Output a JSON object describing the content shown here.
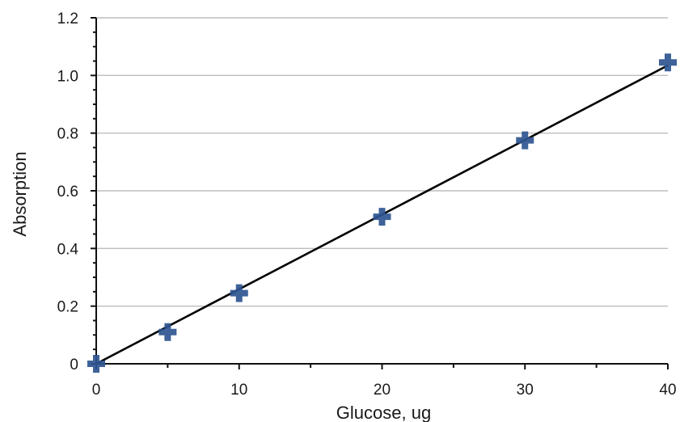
{
  "chart_data": {
    "type": "scatter",
    "xlabel": "Glucose, ug",
    "ylabel": "Absorption",
    "xlim": [
      0,
      40
    ],
    "ylim": [
      0,
      1.2
    ],
    "x_ticks": [
      0,
      10,
      20,
      30,
      40
    ],
    "y_ticks": [
      0,
      0.2,
      0.4,
      0.6,
      0.8,
      1.0,
      1.2
    ],
    "x_tick_labels": [
      "0",
      "10",
      "20",
      "30",
      "40"
    ],
    "y_tick_labels": [
      "0",
      "0.2",
      "0.4",
      "0.6",
      "0.8",
      "1.0",
      "1.2"
    ],
    "grid": "horizontal",
    "series": [
      {
        "x": [
          0,
          5,
          10,
          20,
          30,
          40
        ],
        "y": [
          0.0,
          0.11,
          0.245,
          0.51,
          0.775,
          1.045
        ],
        "marker": "plus",
        "color": "#2e5590"
      }
    ],
    "trendline": {
      "type": "linear",
      "from": [
        0,
        0
      ],
      "to": [
        40,
        1.035
      ],
      "color": "#000000"
    }
  }
}
